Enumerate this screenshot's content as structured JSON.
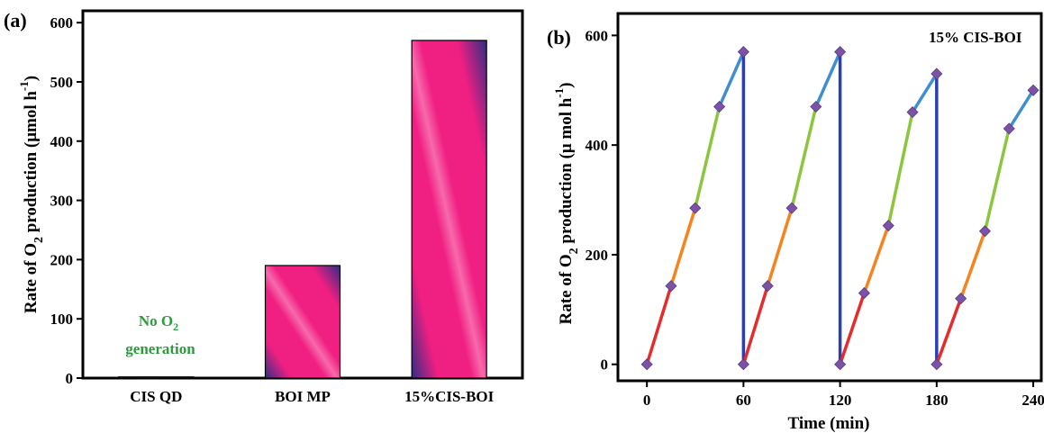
{
  "chart_data": [
    {
      "type": "bar",
      "panel_label": "(a)",
      "categories": [
        "CIS QD",
        "BOI MP",
        "15%CIS-BOI"
      ],
      "values": [
        2,
        190,
        570
      ],
      "ylabel_parts": {
        "pre": "Rate of O",
        "sub": "2",
        "mid": " production (μmol h",
        "sup": "-1",
        "post": ")"
      },
      "ylim": [
        0,
        620
      ],
      "yticks": [
        0,
        100,
        200,
        300,
        400,
        500,
        600
      ],
      "annotation": {
        "line1_pre": "No O",
        "line1_sub": "2",
        "line2": "generation"
      },
      "grid": false,
      "colors": {
        "bar_main": "#f01f82",
        "bar_dark": "#2e2e82",
        "annotation": "#2e9a3e"
      }
    },
    {
      "type": "line",
      "panel_label": "(b)",
      "legend_text": "15% CIS-BOI",
      "xlabel": "Time (min)",
      "ylabel_parts": {
        "pre": "Rate of O",
        "sub": "2",
        "mid": " production (μ mol h",
        "sup": "-1",
        "post": ")"
      },
      "xlim": [
        -18,
        245
      ],
      "ylim": [
        -30,
        640
      ],
      "xticks": [
        0,
        60,
        120,
        180,
        240
      ],
      "yticks": [
        0,
        200,
        400,
        600
      ],
      "cycles": [
        {
          "x": [
            0,
            15,
            30,
            45,
            60
          ],
          "y": [
            0,
            143,
            285,
            470,
            570
          ]
        },
        {
          "x": [
            60,
            75,
            90,
            105,
            120
          ],
          "y": [
            0,
            143,
            285,
            470,
            570
          ]
        },
        {
          "x": [
            120,
            135,
            150,
            165,
            180
          ],
          "y": [
            0,
            130,
            253,
            460,
            530
          ]
        },
        {
          "x": [
            180,
            195,
            210,
            225,
            240
          ],
          "y": [
            0,
            120,
            243,
            430,
            500
          ]
        }
      ],
      "segment_colors": [
        "#e52b2b",
        "#f5841f",
        "#8cc63f",
        "#3f8fd0"
      ],
      "reset_color": "#2b3fb0",
      "marker_color": "#7b52a6",
      "grid": false
    }
  ]
}
